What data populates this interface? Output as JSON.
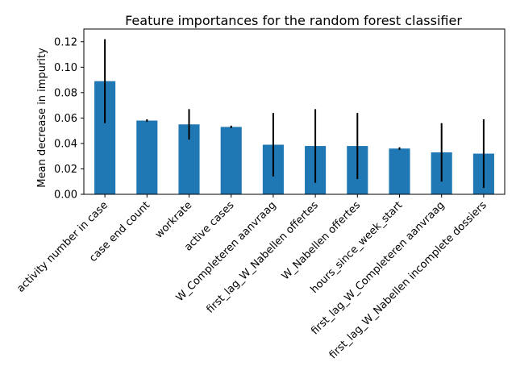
{
  "chart_data": {
    "type": "bar",
    "title": "Feature importances for the random forest classifier",
    "xlabel": "",
    "ylabel": "Mean decrease in impurity",
    "ylim": [
      0,
      0.13
    ],
    "y_ticks": [
      "0.00",
      "0.02",
      "0.04",
      "0.06",
      "0.08",
      "0.10",
      "0.12"
    ],
    "grid": false,
    "legend": "none",
    "bar_color": "#1f77b4",
    "error_color": "#000000",
    "categories": [
      "activity number in case",
      "case end count",
      "workrate",
      "active cases",
      "W_Completeren aanvraag",
      "first_lag_W_Nabellen offertes",
      "W_Nabellen offertes",
      "hours_since_week_start",
      "first_lag_W_Completeren aanvraag",
      "first_lag_W_Nabellen incomplete dossiers"
    ],
    "values": [
      0.089,
      0.058,
      0.055,
      0.053,
      0.039,
      0.038,
      0.038,
      0.036,
      0.033,
      0.032
    ],
    "errors": [
      0.033,
      0.001,
      0.012,
      0.001,
      0.025,
      0.029,
      0.026,
      0.001,
      0.023,
      0.027
    ]
  }
}
